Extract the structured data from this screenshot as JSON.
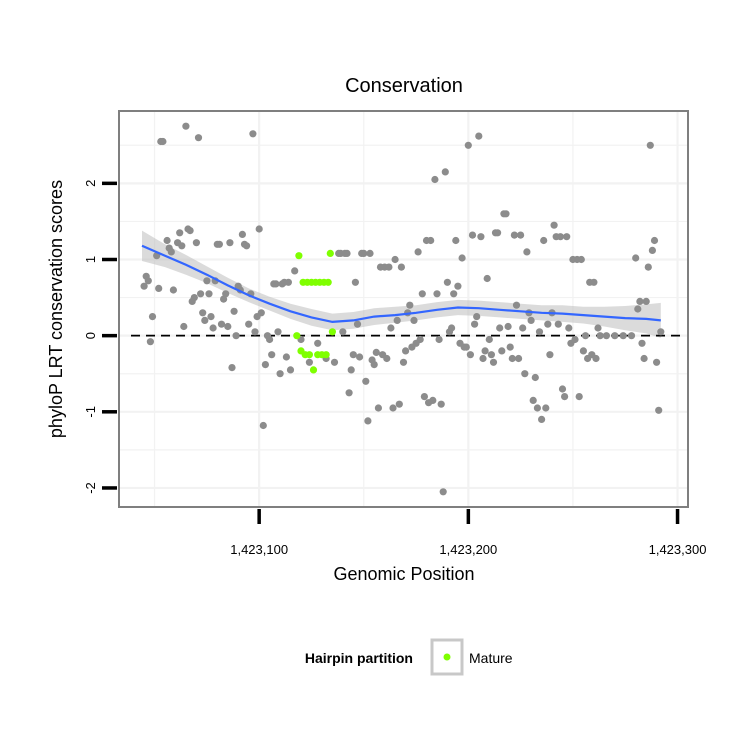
{
  "chart_data": {
    "type": "scatter",
    "title": "Conservation",
    "xlabel": "Genomic Position",
    "ylabel": "phyloP LRT conservation scores",
    "xlim": [
      1423033,
      1423305
    ],
    "ylim": [
      -2.25,
      2.95
    ],
    "x_ticks": [
      1423100,
      1423200,
      1423300
    ],
    "x_tick_labels": [
      "1,423,100",
      "1,423,200",
      "1,423,300"
    ],
    "y_ticks": [
      -2,
      -1,
      0,
      1,
      2
    ],
    "y_tick_labels": [
      "-2",
      "-1",
      "0",
      "1",
      "2"
    ],
    "grid": true,
    "reference_line": {
      "y": 0,
      "style": "dashed"
    },
    "colors": {
      "points": "#8c8c8c",
      "mature": "#7fff00",
      "smooth": "#3366ff",
      "ribbon": "#bdbdbd",
      "panel_border": "#7f7f7f",
      "grid": "#f2f2f2"
    },
    "legend": {
      "title": "Hairpin partition",
      "entries": [
        "Mature"
      ],
      "position": "bottom"
    },
    "series": [
      {
        "role": "points",
        "points": [
          [
            1423045,
            0.65
          ],
          [
            1423046,
            0.78
          ],
          [
            1423047,
            0.72
          ],
          [
            1423048,
            -0.08
          ],
          [
            1423049,
            0.25
          ],
          [
            1423051,
            1.05
          ],
          [
            1423052,
            0.62
          ],
          [
            1423053,
            2.55
          ],
          [
            1423054,
            2.55
          ],
          [
            1423056,
            1.25
          ],
          [
            1423057,
            1.15
          ],
          [
            1423058,
            1.1
          ],
          [
            1423059,
            0.6
          ],
          [
            1423061,
            1.22
          ],
          [
            1423062,
            1.35
          ],
          [
            1423063,
            1.18
          ],
          [
            1423064,
            0.12
          ],
          [
            1423065,
            2.75
          ],
          [
            1423066,
            1.4
          ],
          [
            1423067,
            1.38
          ],
          [
            1423068,
            0.45
          ],
          [
            1423069,
            0.5
          ],
          [
            1423070,
            1.22
          ],
          [
            1423071,
            2.6
          ],
          [
            1423072,
            0.55
          ],
          [
            1423073,
            0.3
          ],
          [
            1423074,
            0.2
          ],
          [
            1423075,
            0.72
          ],
          [
            1423076,
            0.55
          ],
          [
            1423077,
            0.25
          ],
          [
            1423078,
            0.1
          ],
          [
            1423079,
            0.72
          ],
          [
            1423080,
            1.2
          ],
          [
            1423081,
            1.2
          ],
          [
            1423082,
            0.15
          ],
          [
            1423083,
            0.48
          ],
          [
            1423084,
            0.55
          ],
          [
            1423085,
            0.12
          ],
          [
            1423086,
            1.22
          ],
          [
            1423087,
            -0.42
          ],
          [
            1423088,
            0.32
          ],
          [
            1423089,
            0.0
          ],
          [
            1423090,
            0.65
          ],
          [
            1423091,
            0.6
          ],
          [
            1423092,
            1.33
          ],
          [
            1423093,
            1.2
          ],
          [
            1423094,
            1.18
          ],
          [
            1423095,
            0.15
          ],
          [
            1423096,
            0.55
          ],
          [
            1423097,
            2.65
          ],
          [
            1423098,
            0.05
          ],
          [
            1423099,
            0.25
          ],
          [
            1423100,
            1.4
          ],
          [
            1423101,
            0.3
          ],
          [
            1423102,
            -1.18
          ],
          [
            1423103,
            -0.38
          ],
          [
            1423104,
            0.0
          ],
          [
            1423105,
            -0.05
          ],
          [
            1423106,
            -0.25
          ],
          [
            1423107,
            0.68
          ],
          [
            1423108,
            0.68
          ],
          [
            1423109,
            0.05
          ],
          [
            1423110,
            -0.5
          ],
          [
            1423111,
            0.68
          ],
          [
            1423112,
            0.7
          ],
          [
            1423113,
            -0.28
          ],
          [
            1423114,
            0.7
          ],
          [
            1423115,
            -0.45
          ],
          [
            1423117,
            0.85
          ],
          [
            1423120,
            -0.05
          ],
          [
            1423124,
            -0.35
          ],
          [
            1423128,
            -0.1
          ],
          [
            1423132,
            -0.3
          ],
          [
            1423136,
            -0.35
          ],
          [
            1423138,
            1.08
          ],
          [
            1423139,
            1.08
          ],
          [
            1423140,
            0.05
          ],
          [
            1423141,
            1.08
          ],
          [
            1423142,
            1.08
          ],
          [
            1423143,
            -0.75
          ],
          [
            1423144,
            -0.45
          ],
          [
            1423145,
            -0.25
          ],
          [
            1423146,
            0.7
          ],
          [
            1423147,
            0.15
          ],
          [
            1423148,
            -0.28
          ],
          [
            1423149,
            1.08
          ],
          [
            1423150,
            1.08
          ],
          [
            1423151,
            -0.6
          ],
          [
            1423152,
            -1.12
          ],
          [
            1423153,
            1.08
          ],
          [
            1423154,
            -0.32
          ],
          [
            1423155,
            -0.38
          ],
          [
            1423156,
            -0.22
          ],
          [
            1423157,
            -0.95
          ],
          [
            1423158,
            0.9
          ],
          [
            1423159,
            -0.25
          ],
          [
            1423160,
            0.9
          ],
          [
            1423161,
            -0.3
          ],
          [
            1423162,
            0.9
          ],
          [
            1423163,
            0.1
          ],
          [
            1423164,
            -0.95
          ],
          [
            1423165,
            1.0
          ],
          [
            1423166,
            0.2
          ],
          [
            1423167,
            -0.9
          ],
          [
            1423168,
            0.9
          ],
          [
            1423169,
            -0.35
          ],
          [
            1423170,
            -0.2
          ],
          [
            1423171,
            0.3
          ],
          [
            1423172,
            0.4
          ],
          [
            1423173,
            -0.15
          ],
          [
            1423174,
            0.2
          ],
          [
            1423175,
            -0.1
          ],
          [
            1423176,
            1.1
          ],
          [
            1423177,
            -0.05
          ],
          [
            1423178,
            0.55
          ],
          [
            1423179,
            -0.8
          ],
          [
            1423180,
            1.25
          ],
          [
            1423181,
            -0.88
          ],
          [
            1423182,
            1.25
          ],
          [
            1423183,
            -0.85
          ],
          [
            1423184,
            2.05
          ],
          [
            1423185,
            0.55
          ],
          [
            1423186,
            -0.05
          ],
          [
            1423187,
            -0.9
          ],
          [
            1423188,
            -2.05
          ],
          [
            1423189,
            2.15
          ],
          [
            1423190,
            0.7
          ],
          [
            1423191,
            0.05
          ],
          [
            1423192,
            0.1
          ],
          [
            1423193,
            0.55
          ],
          [
            1423194,
            1.25
          ],
          [
            1423195,
            0.65
          ],
          [
            1423196,
            -0.1
          ],
          [
            1423197,
            1.02
          ],
          [
            1423198,
            -0.15
          ],
          [
            1423199,
            -0.15
          ],
          [
            1423200,
            2.5
          ],
          [
            1423201,
            -0.25
          ],
          [
            1423202,
            1.32
          ],
          [
            1423203,
            0.15
          ],
          [
            1423204,
            0.25
          ],
          [
            1423205,
            2.62
          ],
          [
            1423206,
            1.3
          ],
          [
            1423207,
            -0.3
          ],
          [
            1423208,
            -0.2
          ],
          [
            1423209,
            0.75
          ],
          [
            1423210,
            -0.05
          ],
          [
            1423211,
            -0.25
          ],
          [
            1423212,
            -0.35
          ],
          [
            1423213,
            1.35
          ],
          [
            1423214,
            1.35
          ],
          [
            1423215,
            0.1
          ],
          [
            1423216,
            -0.2
          ],
          [
            1423217,
            1.6
          ],
          [
            1423218,
            1.6
          ],
          [
            1423219,
            0.12
          ],
          [
            1423220,
            -0.15
          ],
          [
            1423221,
            -0.3
          ],
          [
            1423222,
            1.32
          ],
          [
            1423223,
            0.4
          ],
          [
            1423224,
            -0.3
          ],
          [
            1423225,
            1.32
          ],
          [
            1423226,
            0.1
          ],
          [
            1423227,
            -0.5
          ],
          [
            1423228,
            1.1
          ],
          [
            1423229,
            0.3
          ],
          [
            1423230,
            0.2
          ],
          [
            1423231,
            -0.85
          ],
          [
            1423232,
            -0.55
          ],
          [
            1423233,
            -0.95
          ],
          [
            1423234,
            0.05
          ],
          [
            1423235,
            -1.1
          ],
          [
            1423236,
            1.25
          ],
          [
            1423237,
            -0.95
          ],
          [
            1423238,
            0.15
          ],
          [
            1423239,
            -0.25
          ],
          [
            1423240,
            0.3
          ],
          [
            1423241,
            1.45
          ],
          [
            1423242,
            1.3
          ],
          [
            1423243,
            0.15
          ],
          [
            1423244,
            1.3
          ],
          [
            1423245,
            -0.7
          ],
          [
            1423246,
            -0.8
          ],
          [
            1423247,
            1.3
          ],
          [
            1423248,
            0.1
          ],
          [
            1423249,
            -0.1
          ],
          [
            1423250,
            1.0
          ],
          [
            1423251,
            -0.05
          ],
          [
            1423252,
            1.0
          ],
          [
            1423253,
            -0.8
          ],
          [
            1423254,
            1.0
          ],
          [
            1423255,
            -0.2
          ],
          [
            1423256,
            0.0
          ],
          [
            1423257,
            -0.3
          ],
          [
            1423258,
            0.7
          ],
          [
            1423259,
            -0.25
          ],
          [
            1423260,
            0.7
          ],
          [
            1423261,
            -0.3
          ],
          [
            1423262,
            0.1
          ],
          [
            1423263,
            0.0
          ],
          [
            1423266,
            0.0
          ],
          [
            1423270,
            0.0
          ],
          [
            1423274,
            0.0
          ],
          [
            1423278,
            0.0
          ],
          [
            1423280,
            1.02
          ],
          [
            1423281,
            0.35
          ],
          [
            1423282,
            0.45
          ],
          [
            1423283,
            -0.1
          ],
          [
            1423284,
            -0.3
          ],
          [
            1423285,
            0.45
          ],
          [
            1423286,
            0.9
          ],
          [
            1423287,
            2.5
          ],
          [
            1423288,
            1.12
          ],
          [
            1423289,
            1.25
          ],
          [
            1423290,
            -0.35
          ],
          [
            1423291,
            -0.98
          ],
          [
            1423292,
            0.05
          ]
        ]
      },
      {
        "name": "Mature",
        "role": "mature",
        "points": [
          [
            1423118,
            0.0
          ],
          [
            1423119,
            1.05
          ],
          [
            1423120,
            -0.2
          ],
          [
            1423121,
            0.7
          ],
          [
            1423122,
            -0.25
          ],
          [
            1423123,
            0.7
          ],
          [
            1423124,
            -0.25
          ],
          [
            1423125,
            0.7
          ],
          [
            1423126,
            -0.45
          ],
          [
            1423127,
            0.7
          ],
          [
            1423128,
            -0.25
          ],
          [
            1423129,
            0.7
          ],
          [
            1423130,
            -0.25
          ],
          [
            1423131,
            0.7
          ],
          [
            1423132,
            -0.25
          ],
          [
            1423133,
            0.7
          ],
          [
            1423134,
            1.08
          ],
          [
            1423135,
            0.05
          ]
        ]
      }
    ],
    "smooth": {
      "x": [
        1423044,
        1423055,
        1423065,
        1423075,
        1423085,
        1423095,
        1423105,
        1423115,
        1423125,
        1423135,
        1423145,
        1423155,
        1423165,
        1423175,
        1423185,
        1423195,
        1423205,
        1423215,
        1423225,
        1423235,
        1423245,
        1423255,
        1423265,
        1423275,
        1423285,
        1423292
      ],
      "y": [
        1.18,
        1.05,
        0.93,
        0.8,
        0.66,
        0.53,
        0.42,
        0.32,
        0.24,
        0.18,
        0.2,
        0.25,
        0.27,
        0.3,
        0.34,
        0.37,
        0.36,
        0.34,
        0.32,
        0.3,
        0.29,
        0.27,
        0.25,
        0.23,
        0.22,
        0.2
      ],
      "lower": [
        0.98,
        0.9,
        0.8,
        0.69,
        0.56,
        0.44,
        0.33,
        0.22,
        0.13,
        0.07,
        0.09,
        0.14,
        0.17,
        0.2,
        0.24,
        0.27,
        0.26,
        0.24,
        0.22,
        0.2,
        0.18,
        0.16,
        0.12,
        0.07,
        0.03,
        -0.03
      ],
      "upper": [
        1.38,
        1.2,
        1.06,
        0.91,
        0.76,
        0.62,
        0.51,
        0.42,
        0.35,
        0.29,
        0.31,
        0.36,
        0.38,
        0.4,
        0.44,
        0.47,
        0.46,
        0.44,
        0.42,
        0.4,
        0.4,
        0.38,
        0.38,
        0.39,
        0.41,
        0.43
      ]
    }
  }
}
